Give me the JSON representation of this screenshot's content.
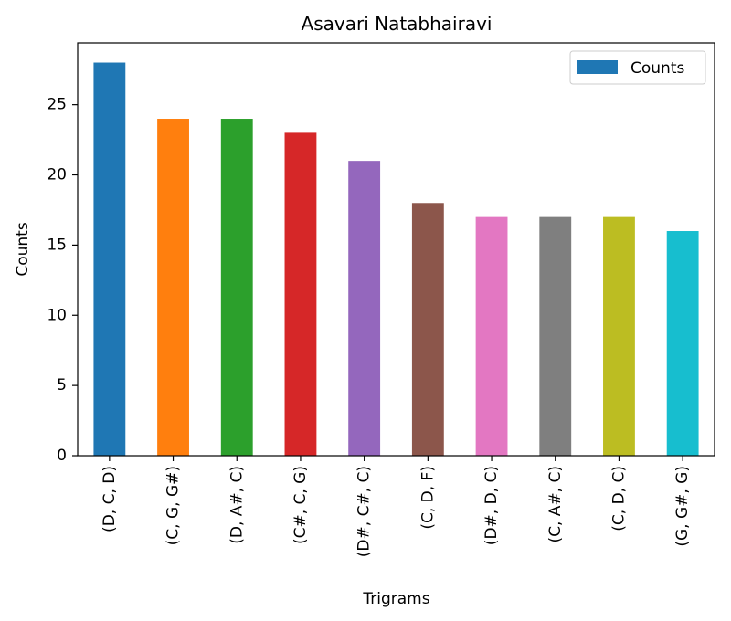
{
  "chart_data": {
    "type": "bar",
    "title": "Asavari Natabhairavi",
    "xlabel": "Trigrams",
    "ylabel": "Counts",
    "categories": [
      "(D, C, D)",
      "(C, G, G#)",
      "(D, A#, C)",
      "(C#, C, G)",
      "(D#, C#, C)",
      "(C, D, F)",
      "(D#, D, C)",
      "(C, A#, C)",
      "(C, D, C)",
      "(G, G#, G)"
    ],
    "series": [
      {
        "name": "Counts",
        "values": [
          28,
          24,
          24,
          23,
          21,
          18,
          17,
          17,
          17,
          16
        ]
      }
    ],
    "ylim": [
      0,
      29.4
    ],
    "yticks": [
      0,
      5,
      10,
      15,
      20,
      25
    ],
    "legend": "top-right",
    "grid": false,
    "bar_colors": [
      "#1f77b4",
      "#ff7f0e",
      "#2ca02c",
      "#d62728",
      "#9467bd",
      "#8c564b",
      "#e377c2",
      "#7f7f7f",
      "#bcbd22",
      "#17becf"
    ],
    "legend_color": "#1f77b4"
  }
}
